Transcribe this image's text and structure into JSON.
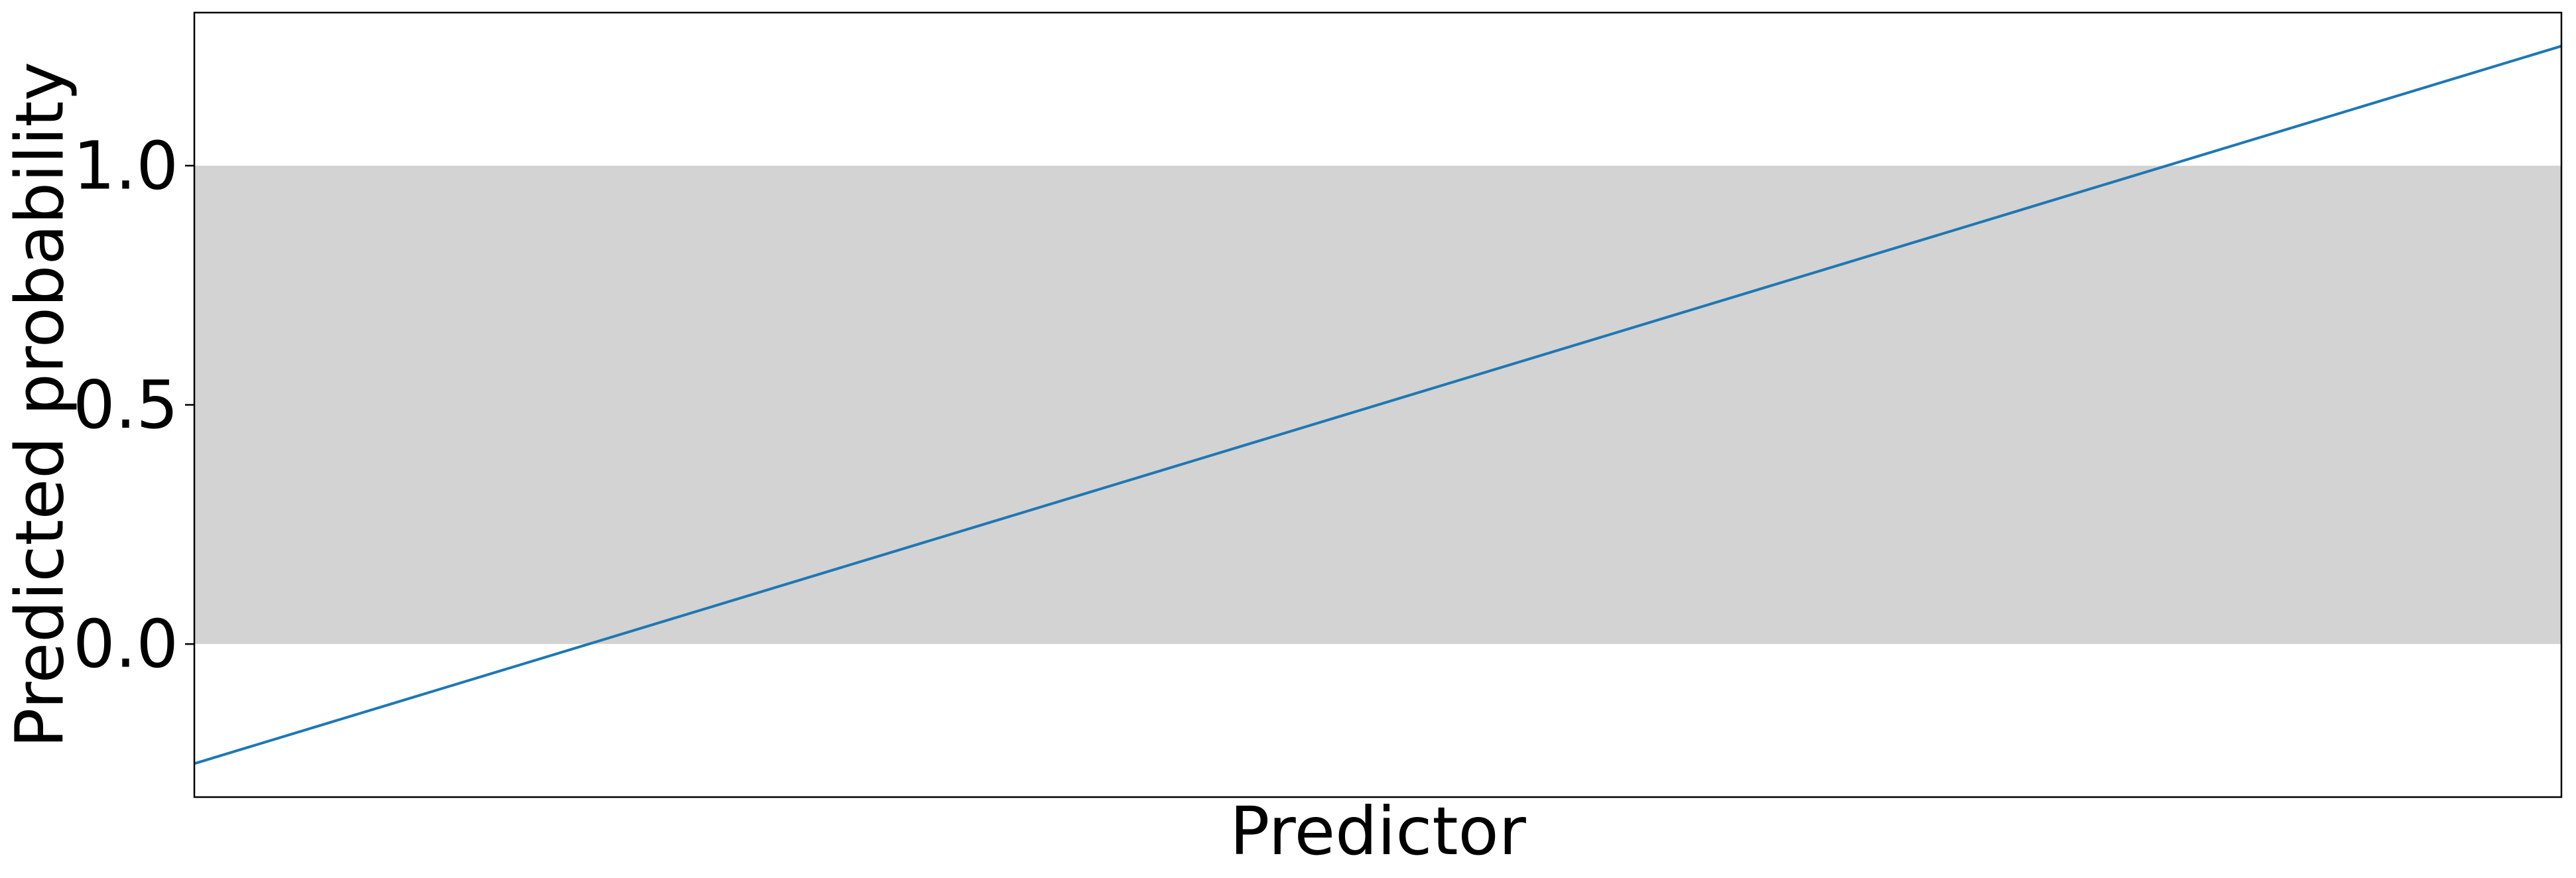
{
  "chart_data": {
    "type": "line",
    "title": "",
    "xlabel": "Predictor",
    "ylabel": "Predicted probability",
    "x_ticks_shown": false,
    "ylim": [
      -0.32,
      1.32
    ],
    "y_ticks": [
      {
        "value": 0.0,
        "label": "0.0"
      },
      {
        "value": 0.5,
        "label": "0.5"
      },
      {
        "value": 1.0,
        "label": "1.0"
      }
    ],
    "shaded_band": {
      "y_from": 0.0,
      "y_to": 1.0,
      "color": "#d3d3d3"
    },
    "series": [
      {
        "color": "#1f77b4",
        "points": [
          {
            "x": 0.0,
            "y": -0.25
          },
          {
            "x": 1.0,
            "y": 1.25
          }
        ]
      }
    ],
    "grid": false,
    "legend": "none"
  }
}
